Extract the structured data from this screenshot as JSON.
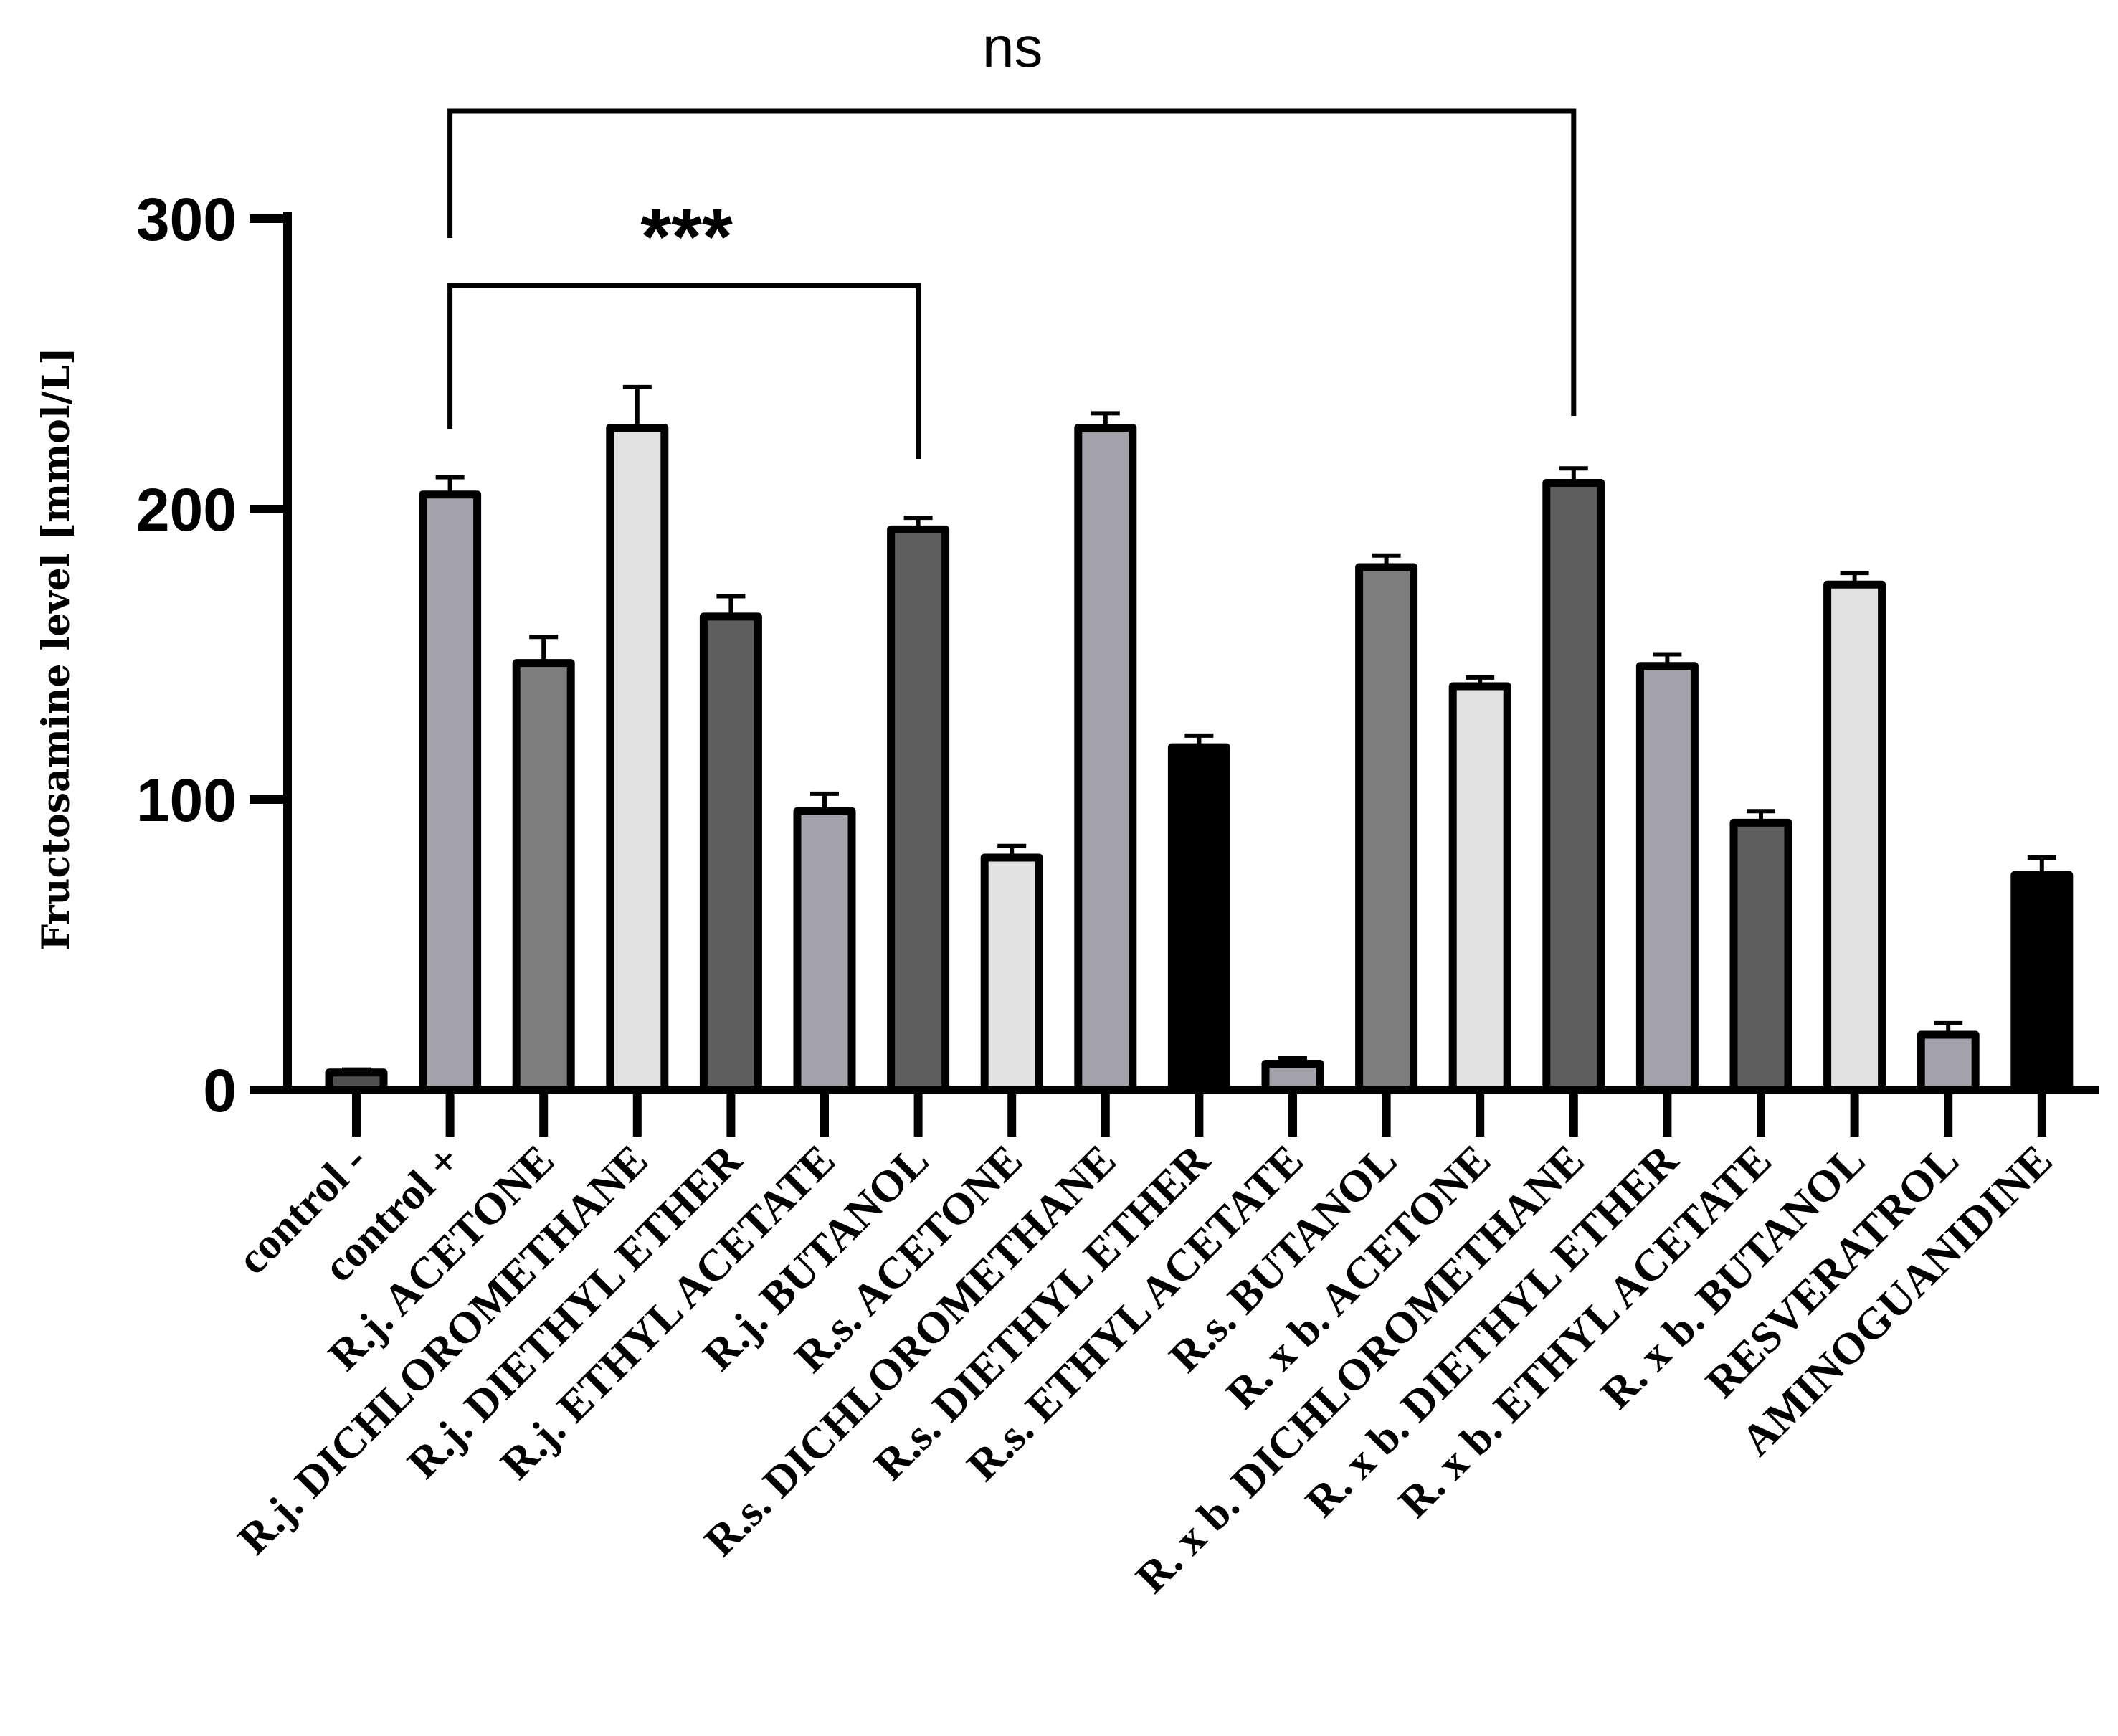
{
  "chart_data": {
    "type": "bar",
    "title": "",
    "xlabel": "",
    "ylabel": "Fructosamine level [mmol/L]",
    "ylim": [
      0,
      300
    ],
    "yticks": [
      "0",
      "100",
      "200",
      "300"
    ],
    "categories": [
      "control -",
      "control +",
      "R.j. ACETONE",
      "R.j. DICHLOROMETHANE",
      "R.j. DIETHYL ETHER",
      "R.j. ETHYL ACETATE",
      "R.j. BUTANOL",
      "R.s. ACETONE",
      "R.s. DICHLOROMETHANE",
      "R.s. DIETHYL ETHER",
      "R.s. ETHYL ACETATE",
      "R.s. BUTANOL",
      "R. x b. ACETONE",
      "R. x b. DICHLOROMETHANE",
      "R. x b.  DIETHYL ETHER",
      "R. x b.  ETHYL ACETATE",
      "R. x b. BUTANOL",
      "RESVERATROL",
      "AMINOGUANIDINE"
    ],
    "values": [
      6,
      205,
      147,
      228,
      163,
      96,
      193,
      80,
      228,
      118,
      9,
      180,
      139,
      209,
      146,
      92,
      174,
      19,
      74
    ],
    "errors": [
      1,
      6,
      9,
      14,
      7,
      6,
      4,
      4,
      5,
      4,
      2,
      4,
      3,
      5,
      4,
      4,
      4,
      4,
      6
    ],
    "bar_colors": [
      "#505050",
      "#a2a2a8",
      "#7e7e7e",
      "#e2e2e2",
      "#5e5e5e",
      "#a2a2a8",
      "#5e5e5e",
      "#e2e2e2",
      "#a2a2a8",
      "#000000",
      "#a2a2a8",
      "#7e7e7e",
      "#e2e2e2",
      "#5e5e5e",
      "#a2a2a8",
      "#5e5e5e",
      "#e2e2e2",
      "#a2a2a8",
      "#000000"
    ],
    "annotations": [
      {
        "text": "***",
        "from": "control +",
        "to": "R.j. BUTANOL"
      },
      {
        "text": "ns",
        "from": "control +",
        "to": "R. x b. DICHLOROMETHANE"
      }
    ]
  }
}
